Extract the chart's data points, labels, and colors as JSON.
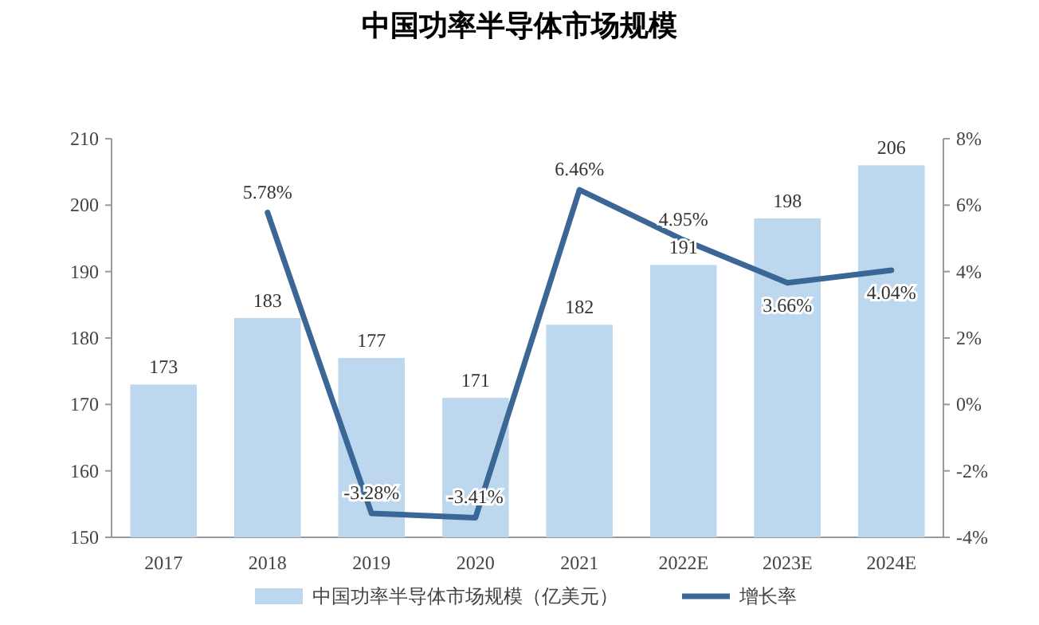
{
  "chart_data": {
    "type": "bar",
    "title": "中国功率半导体市场规模",
    "categories": [
      "2017",
      "2018",
      "2019",
      "2020",
      "2021",
      "2022E",
      "2023E",
      "2024E"
    ],
    "ylim": [
      150,
      210
    ],
    "yticks": [
      150,
      160,
      170,
      180,
      190,
      200,
      210
    ],
    "y2lim": [
      -4,
      8
    ],
    "y2ticks": [
      {
        "value": -4,
        "label": "-4%"
      },
      {
        "value": -2,
        "label": "-2%"
      },
      {
        "value": 0,
        "label": "0%"
      },
      {
        "value": 2,
        "label": "2%"
      },
      {
        "value": 4,
        "label": "4%"
      },
      {
        "value": 6,
        "label": "6%"
      },
      {
        "value": 8,
        "label": "8%"
      }
    ],
    "legend": "bottom",
    "grid": false,
    "series": [
      {
        "name": "中国功率半导体市场规模（亿美元）",
        "color": "#bdd7ee",
        "values": [
          173,
          183,
          177,
          171,
          182,
          191,
          198,
          206
        ],
        "value_labels": [
          "173",
          "183",
          "177",
          "171",
          "182",
          "191",
          "198",
          "206"
        ]
      },
      {
        "name": "增长率",
        "type": "line",
        "axis": "y2",
        "color": "#3a6796",
        "values": [
          null,
          5.78,
          -3.28,
          -3.41,
          6.46,
          4.95,
          3.66,
          4.04
        ],
        "value_labels": [
          null,
          "5.78%",
          "-3.28%",
          "-3.41%",
          "6.46%",
          "4.95%",
          "3.66%",
          "4.04%"
        ]
      }
    ]
  }
}
